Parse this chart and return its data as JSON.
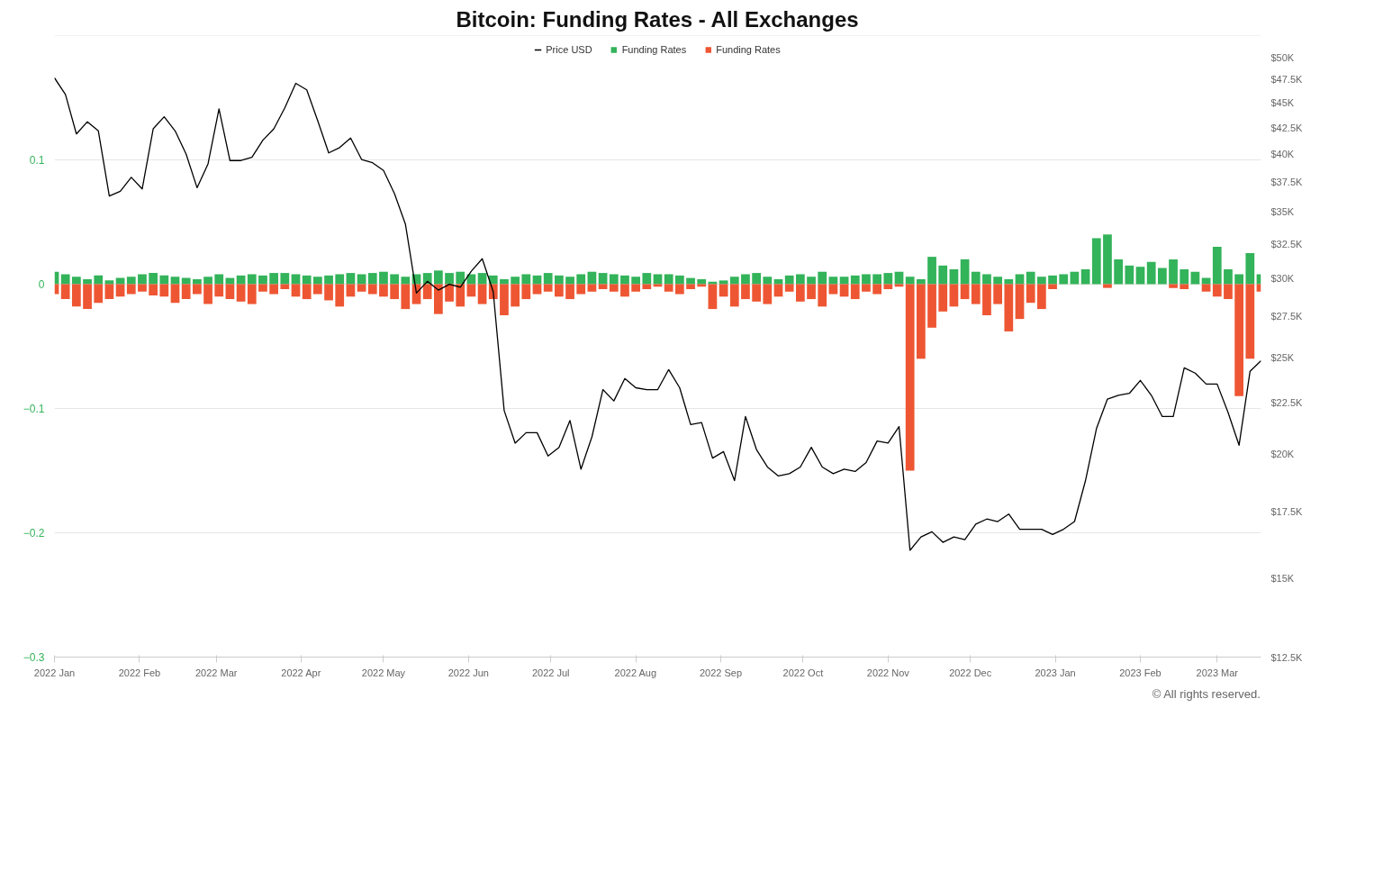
{
  "chart_data": {
    "type": "bar",
    "title": "Bitcoin: Funding Rates - All Exchanges",
    "legend": "top",
    "grid": "y",
    "log": "y2",
    "stacked": true,
    "x": [
      "2022-01-01",
      "2022-01-05",
      "2022-01-09",
      "2022-01-13",
      "2022-01-17",
      "2022-01-21",
      "2022-01-25",
      "2022-01-29",
      "2022-02-02",
      "2022-02-06",
      "2022-02-10",
      "2022-02-14",
      "2022-02-18",
      "2022-02-22",
      "2022-02-26",
      "2022-03-02",
      "2022-03-06",
      "2022-03-10",
      "2022-03-14",
      "2022-03-18",
      "2022-03-22",
      "2022-03-26",
      "2022-03-30",
      "2022-04-03",
      "2022-04-07",
      "2022-04-11",
      "2022-04-15",
      "2022-04-19",
      "2022-04-23",
      "2022-04-27",
      "2022-05-01",
      "2022-05-05",
      "2022-05-09",
      "2022-05-13",
      "2022-05-17",
      "2022-05-21",
      "2022-05-25",
      "2022-05-29",
      "2022-06-02",
      "2022-06-06",
      "2022-06-10",
      "2022-06-14",
      "2022-06-18",
      "2022-06-22",
      "2022-06-26",
      "2022-06-30",
      "2022-07-04",
      "2022-07-08",
      "2022-07-12",
      "2022-07-16",
      "2022-07-20",
      "2022-07-24",
      "2022-07-28",
      "2022-08-01",
      "2022-08-05",
      "2022-08-09",
      "2022-08-13",
      "2022-08-17",
      "2022-08-21",
      "2022-08-25",
      "2022-08-29",
      "2022-09-02",
      "2022-09-06",
      "2022-09-10",
      "2022-09-14",
      "2022-09-18",
      "2022-09-22",
      "2022-09-26",
      "2022-09-30",
      "2022-10-04",
      "2022-10-08",
      "2022-10-12",
      "2022-10-16",
      "2022-10-20",
      "2022-10-24",
      "2022-10-28",
      "2022-11-01",
      "2022-11-05",
      "2022-11-09",
      "2022-11-13",
      "2022-11-17",
      "2022-11-21",
      "2022-11-25",
      "2022-11-29",
      "2022-12-03",
      "2022-12-07",
      "2022-12-11",
      "2022-12-15",
      "2022-12-19",
      "2022-12-23",
      "2022-12-27",
      "2022-12-31",
      "2023-01-04",
      "2023-01-08",
      "2023-01-12",
      "2023-01-16",
      "2023-01-20",
      "2023-01-24",
      "2023-01-28",
      "2023-02-01",
      "2023-02-05",
      "2023-02-09",
      "2023-02-13",
      "2023-02-17",
      "2023-02-21",
      "2023-02-25",
      "2023-03-01",
      "2023-03-05",
      "2023-03-09",
      "2023-03-13",
      "2023-03-17"
    ],
    "series": [
      {
        "name": "Price USD",
        "type": "line",
        "axis": "y2",
        "color": "#000000",
        "values": [
          47700,
          45900,
          41900,
          43100,
          42200,
          36300,
          36700,
          37900,
          36900,
          42400,
          43600,
          42200,
          40000,
          37000,
          39100,
          44400,
          39400,
          39400,
          39700,
          41300,
          42400,
          44500,
          47100,
          46400,
          43200,
          40100,
          40600,
          41500,
          39500,
          39200,
          38500,
          36500,
          34000,
          29000,
          29800,
          29200,
          29600,
          29400,
          30500,
          31400,
          29100,
          22100,
          20500,
          21000,
          21000,
          19900,
          20300,
          21600,
          19300,
          20800,
          23200,
          22600,
          23800,
          23300,
          23200,
          23200,
          24300,
          23300,
          21400,
          21500,
          19800,
          20100,
          18800,
          21800,
          20200,
          19400,
          19000,
          19100,
          19400,
          20300,
          19400,
          19100,
          19300,
          19200,
          19600,
          20600,
          20500,
          21300,
          16000,
          16500,
          16700,
          16300,
          16500,
          16400,
          17000,
          17200,
          17100,
          17400,
          16800,
          16800,
          16800,
          16600,
          16800,
          17100,
          18800,
          21200,
          22700,
          22900,
          23000,
          23700,
          22900,
          21800,
          21800,
          24400,
          24100,
          23500,
          23500,
          22000,
          20400,
          24200,
          24800
        ]
      },
      {
        "name": "Funding Rates",
        "color": "#33b35a",
        "values": [
          0.01,
          0.008,
          0.006,
          0.004,
          0.007,
          0.003,
          0.005,
          0.006,
          0.008,
          0.009,
          0.007,
          0.006,
          0.005,
          0.004,
          0.006,
          0.008,
          0.005,
          0.007,
          0.008,
          0.007,
          0.009,
          0.009,
          0.008,
          0.007,
          0.006,
          0.007,
          0.008,
          0.009,
          0.008,
          0.009,
          0.01,
          0.008,
          0.006,
          0.008,
          0.009,
          0.011,
          0.009,
          0.01,
          0.008,
          0.009,
          0.007,
          0.004,
          0.006,
          0.008,
          0.007,
          0.009,
          0.007,
          0.006,
          0.008,
          0.01,
          0.009,
          0.008,
          0.007,
          0.006,
          0.009,
          0.008,
          0.008,
          0.007,
          0.005,
          0.004,
          0.002,
          0.003,
          0.006,
          0.008,
          0.009,
          0.006,
          0.004,
          0.007,
          0.008,
          0.006,
          0.01,
          0.006,
          0.006,
          0.007,
          0.008,
          0.008,
          0.009,
          0.01,
          0.006,
          0.004,
          0.022,
          0.015,
          0.012,
          0.02,
          0.01,
          0.008,
          0.006,
          0.004,
          0.008,
          0.01,
          0.006,
          0.007,
          0.008,
          0.01,
          0.012,
          0.037,
          0.04,
          0.02,
          0.015,
          0.014,
          0.018,
          0.013,
          0.02,
          0.012,
          0.01,
          0.005,
          0.03,
          0.012,
          0.008,
          0.025,
          0.008
        ]
      },
      {
        "name": "Funding Rates",
        "color": "#ee5633",
        "values": [
          -0.008,
          -0.012,
          -0.018,
          -0.02,
          -0.015,
          -0.012,
          -0.01,
          -0.008,
          -0.006,
          -0.009,
          -0.01,
          -0.015,
          -0.012,
          -0.008,
          -0.016,
          -0.01,
          -0.012,
          -0.014,
          -0.016,
          -0.006,
          -0.008,
          -0.004,
          -0.01,
          -0.012,
          -0.008,
          -0.013,
          -0.018,
          -0.01,
          -0.006,
          -0.008,
          -0.01,
          -0.012,
          -0.02,
          -0.016,
          -0.012,
          -0.024,
          -0.014,
          -0.018,
          -0.01,
          -0.016,
          -0.012,
          -0.025,
          -0.018,
          -0.012,
          -0.008,
          -0.006,
          -0.01,
          -0.012,
          -0.008,
          -0.006,
          -0.004,
          -0.006,
          -0.01,
          -0.006,
          -0.004,
          -0.002,
          -0.006,
          -0.008,
          -0.004,
          -0.002,
          -0.02,
          -0.01,
          -0.018,
          -0.012,
          -0.014,
          -0.016,
          -0.01,
          -0.006,
          -0.014,
          -0.012,
          -0.018,
          -0.008,
          -0.01,
          -0.012,
          -0.006,
          -0.008,
          -0.004,
          -0.002,
          -0.15,
          -0.06,
          -0.035,
          -0.022,
          -0.018,
          -0.012,
          -0.016,
          -0.025,
          -0.016,
          -0.038,
          -0.028,
          -0.015,
          -0.02,
          -0.004,
          null,
          null,
          null,
          null,
          -0.003,
          null,
          null,
          null,
          null,
          null,
          -0.003,
          -0.004,
          null,
          -0.006,
          -0.01,
          -0.012,
          -0.09,
          -0.06,
          -0.006
        ]
      }
    ],
    "xlim": [
      "2022-01-01",
      "2023-03-17"
    ],
    "xticks": [
      {
        "value": "2022-01",
        "label": "2022 Jan"
      },
      {
        "value": "2022-02",
        "label": "2022 Feb"
      },
      {
        "value": "2022-03",
        "label": "2022 Mar"
      },
      {
        "value": "2022-04",
        "label": "2022 Apr"
      },
      {
        "value": "2022-05",
        "label": "2022 May"
      },
      {
        "value": "2022-06",
        "label": "2022 Jun"
      },
      {
        "value": "2022-07",
        "label": "2022 Jul"
      },
      {
        "value": "2022-08",
        "label": "2022 Aug"
      },
      {
        "value": "2022-09",
        "label": "2022 Sep"
      },
      {
        "value": "2022-10",
        "label": "2022 Oct"
      },
      {
        "value": "2022-11",
        "label": "2022 Nov"
      },
      {
        "value": "2022-12",
        "label": "2022 Dec"
      },
      {
        "value": "2023-01",
        "label": "2023 Jan"
      },
      {
        "value": "2023-02",
        "label": "2023 Feb"
      },
      {
        "value": "2023-03",
        "label": "2023 Mar"
      }
    ],
    "ylim": [
      -0.3,
      0.2
    ],
    "yticks": [
      -0.3,
      -0.2,
      -0.1,
      0,
      0.1
    ],
    "y2lim": [
      12500,
      52600
    ],
    "y2ticks": [
      {
        "value": 12500,
        "label": "$12.5K"
      },
      {
        "value": 15000,
        "label": "$15K"
      },
      {
        "value": 17500,
        "label": "$17.5K"
      },
      {
        "value": 20000,
        "label": "$20K"
      },
      {
        "value": 22500,
        "label": "$22.5K"
      },
      {
        "value": 25000,
        "label": "$25K"
      },
      {
        "value": 27500,
        "label": "$27.5K"
      },
      {
        "value": 30000,
        "label": "$30K"
      },
      {
        "value": 32500,
        "label": "$32.5K"
      },
      {
        "value": 35000,
        "label": "$35K"
      },
      {
        "value": 37500,
        "label": "$37.5K"
      },
      {
        "value": 40000,
        "label": "$40K"
      },
      {
        "value": 42500,
        "label": "$42.5K"
      },
      {
        "value": 45000,
        "label": "$45K"
      },
      {
        "value": 47500,
        "label": "$47.5K"
      },
      {
        "value": 50000,
        "label": "$50K"
      }
    ],
    "annotations": [
      "© All rights reserved."
    ]
  }
}
